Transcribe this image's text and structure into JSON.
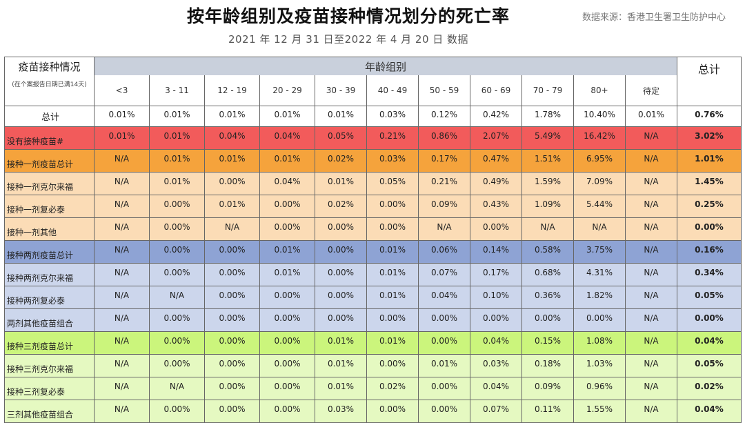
{
  "header": {
    "title": "按年龄组别及疫苗接种情况划分的死亡率",
    "source": "数据来源：香港卫生署卫生防护中心",
    "subtitle": "2021 年 12 月 31 日至2022 年 4 月 20 日 数据"
  },
  "table": {
    "corner_label": "疫苗接种情况",
    "corner_note": "(在个案报告日期已满14天)",
    "group_label": "年龄组别",
    "total_label": "总计",
    "age_groups": [
      "<3",
      "3 - 11",
      "12 - 19",
      "20 - 29",
      "30 - 39",
      "40 - 49",
      "50 - 59",
      "60 - 69",
      "70 - 79",
      "80+",
      "待定"
    ],
    "rows": [
      {
        "label": "总计",
        "bg": "#ffffff",
        "values": [
          "0.01%",
          "0.01%",
          "0.01%",
          "0.01%",
          "0.01%",
          "0.03%",
          "0.12%",
          "0.42%",
          "1.78%",
          "10.40%",
          "0.01%"
        ],
        "total": "0.76%"
      },
      {
        "label": "没有接种疫苗#",
        "bg": "#f25b5b",
        "values": [
          "0.01%",
          "0.01%",
          "0.04%",
          "0.04%",
          "0.05%",
          "0.21%",
          "0.86%",
          "2.07%",
          "5.49%",
          "16.42%",
          "N/A"
        ],
        "total": "3.02%"
      },
      {
        "label": "接种一剂疫苗总计",
        "bg": "#f5a33c",
        "values": [
          "N/A",
          "0.01%",
          "0.01%",
          "0.01%",
          "0.02%",
          "0.03%",
          "0.17%",
          "0.47%",
          "1.51%",
          "6.95%",
          "N/A"
        ],
        "total": "1.01%"
      },
      {
        "label": "接种一剂克尔来福",
        "bg": "#fbdcb6",
        "values": [
          "N/A",
          "0.01%",
          "0.00%",
          "0.04%",
          "0.01%",
          "0.05%",
          "0.21%",
          "0.49%",
          "1.59%",
          "7.09%",
          "N/A"
        ],
        "total": "1.45%"
      },
      {
        "label": "接种一剂复必泰",
        "bg": "#fbdcb6",
        "values": [
          "N/A",
          "0.00%",
          "0.01%",
          "0.00%",
          "0.02%",
          "0.00%",
          "0.09%",
          "0.43%",
          "1.09%",
          "5.44%",
          "N/A"
        ],
        "total": "0.25%"
      },
      {
        "label": "接种一剂其他",
        "bg": "#fbdcb6",
        "values": [
          "N/A",
          "0.00%",
          "N/A",
          "0.00%",
          "0.00%",
          "0.00%",
          "N/A",
          "0.00%",
          "N/A",
          "N/A",
          "N/A"
        ],
        "total": "0.00%"
      },
      {
        "label": "接种两剂疫苗总计",
        "bg": "#8ea3d4",
        "values": [
          "N/A",
          "0.00%",
          "0.00%",
          "0.01%",
          "0.00%",
          "0.01%",
          "0.06%",
          "0.14%",
          "0.58%",
          "3.75%",
          "N/A"
        ],
        "total": "0.16%"
      },
      {
        "label": "接种两剂克尔来福",
        "bg": "#ccd6ec",
        "values": [
          "N/A",
          "0.00%",
          "0.00%",
          "0.01%",
          "0.00%",
          "0.01%",
          "0.07%",
          "0.17%",
          "0.68%",
          "4.31%",
          "N/A"
        ],
        "total": "0.34%"
      },
      {
        "label": "接种两剂复必泰",
        "bg": "#ccd6ec",
        "values": [
          "N/A",
          "N/A",
          "0.00%",
          "0.00%",
          "0.00%",
          "0.01%",
          "0.04%",
          "0.10%",
          "0.36%",
          "1.82%",
          "N/A"
        ],
        "total": "0.05%"
      },
      {
        "label": "两剂其他疫苗组合",
        "bg": "#ccd6ec",
        "values": [
          "N/A",
          "0.00%",
          "0.00%",
          "0.00%",
          "0.00%",
          "0.00%",
          "0.00%",
          "0.00%",
          "0.00%",
          "0.00%",
          "N/A"
        ],
        "total": "0.00%"
      },
      {
        "label": "接种三剂疫苗总计",
        "bg": "#cbf57c",
        "values": [
          "N/A",
          "0.00%",
          "0.00%",
          "0.00%",
          "0.01%",
          "0.01%",
          "0.00%",
          "0.04%",
          "0.15%",
          "1.08%",
          "N/A"
        ],
        "total": "0.04%"
      },
      {
        "label": "接种三剂克尔来福",
        "bg": "#e5f9c1",
        "values": [
          "N/A",
          "0.00%",
          "0.00%",
          "0.00%",
          "0.01%",
          "0.00%",
          "0.01%",
          "0.03%",
          "0.18%",
          "1.03%",
          "N/A"
        ],
        "total": "0.05%"
      },
      {
        "label": "接种三剂复必泰",
        "bg": "#e5f9c1",
        "values": [
          "N/A",
          "N/A",
          "0.00%",
          "0.00%",
          "0.01%",
          "0.02%",
          "0.00%",
          "0.04%",
          "0.09%",
          "0.96%",
          "N/A"
        ],
        "total": "0.02%"
      },
      {
        "label": "三剂其他疫苗组合",
        "bg": "#e5f9c1",
        "values": [
          "N/A",
          "0.00%",
          "0.00%",
          "0.00%",
          "0.03%",
          "0.00%",
          "0.00%",
          "0.07%",
          "0.11%",
          "1.55%",
          "N/A"
        ],
        "total": "0.04%"
      }
    ]
  }
}
